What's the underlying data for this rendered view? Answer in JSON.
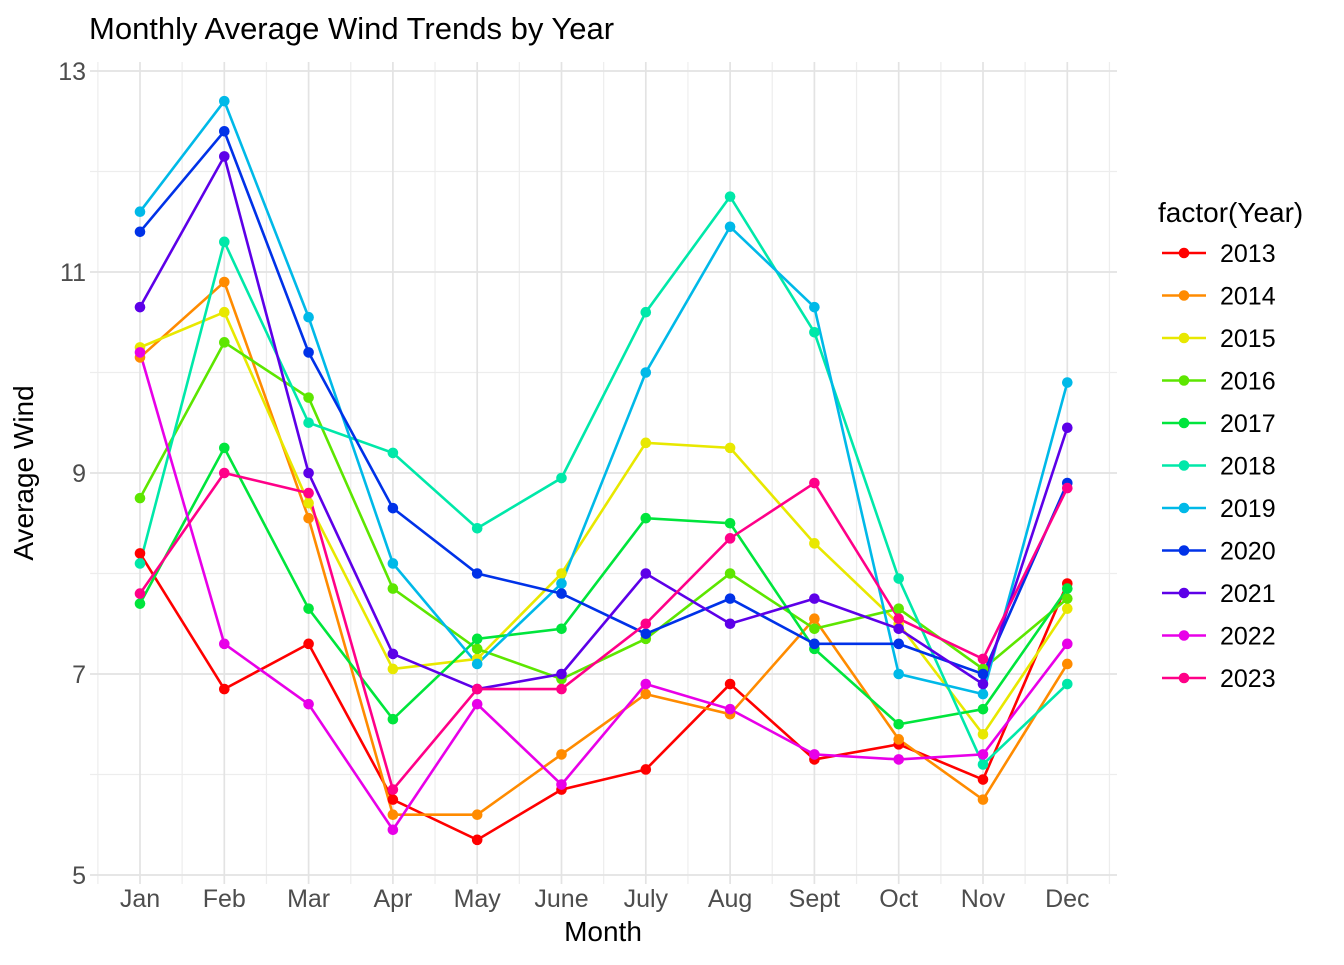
{
  "chart_data": {
    "type": "line",
    "title": "Monthly Average Wind Trends by Year",
    "xlabel": "Month",
    "ylabel": "Average Wind",
    "legend_title": "factor(Year)",
    "legend_position": "right",
    "grid": true,
    "ylim": [
      5,
      13
    ],
    "y_ticks": [
      5,
      7,
      9,
      11,
      13
    ],
    "y_minor_ticks": [
      6,
      8,
      10,
      12
    ],
    "categories": [
      "Jan",
      "Feb",
      "Mar",
      "Apr",
      "May",
      "June",
      "July",
      "Aug",
      "Sept",
      "Oct",
      "Nov",
      "Dec"
    ],
    "series": [
      {
        "name": "2013",
        "color": "#FF0000",
        "values": [
          8.2,
          6.85,
          7.3,
          5.75,
          5.35,
          5.85,
          6.05,
          6.9,
          6.15,
          6.3,
          5.95,
          7.9
        ]
      },
      {
        "name": "2014",
        "color": "#FF8B00",
        "values": [
          10.15,
          10.9,
          8.55,
          5.6,
          5.6,
          6.2,
          6.8,
          6.6,
          7.55,
          6.35,
          5.75,
          7.1
        ]
      },
      {
        "name": "2015",
        "color": "#E8E800",
        "values": [
          10.25,
          10.6,
          8.7,
          7.05,
          7.15,
          8.0,
          9.3,
          9.25,
          8.3,
          7.5,
          6.4,
          7.65
        ]
      },
      {
        "name": "2016",
        "color": "#5DE600",
        "values": [
          8.75,
          10.3,
          9.75,
          7.85,
          7.25,
          6.95,
          7.35,
          8.0,
          7.45,
          7.65,
          7.05,
          7.75
        ]
      },
      {
        "name": "2017",
        "color": "#00E53C",
        "values": [
          7.7,
          9.25,
          7.65,
          6.55,
          7.35,
          7.45,
          8.55,
          8.5,
          7.25,
          6.5,
          6.65,
          7.85
        ]
      },
      {
        "name": "2018",
        "color": "#00E8A9",
        "values": [
          8.1,
          11.3,
          9.5,
          9.2,
          8.45,
          8.95,
          10.6,
          11.75,
          10.4,
          7.95,
          6.1,
          6.9
        ]
      },
      {
        "name": "2019",
        "color": "#00B9E8",
        "values": [
          11.6,
          12.7,
          10.55,
          8.1,
          7.1,
          7.9,
          10.0,
          11.45,
          10.65,
          7.0,
          6.8,
          9.9
        ]
      },
      {
        "name": "2020",
        "color": "#0032E8",
        "values": [
          11.4,
          12.4,
          10.2,
          8.65,
          8.0,
          7.8,
          7.4,
          7.75,
          7.3,
          7.3,
          7.0,
          8.9
        ]
      },
      {
        "name": "2021",
        "color": "#5D00E8",
        "values": [
          10.65,
          12.15,
          9.0,
          7.2,
          6.85,
          7.0,
          8.0,
          7.5,
          7.75,
          7.45,
          6.9,
          9.45
        ]
      },
      {
        "name": "2022",
        "color": "#E800E8",
        "values": [
          10.2,
          7.3,
          6.7,
          5.45,
          6.7,
          5.9,
          6.9,
          6.65,
          6.2,
          6.15,
          6.2,
          7.3
        ]
      },
      {
        "name": "2023",
        "color": "#FF0088",
        "values": [
          7.8,
          9.0,
          8.8,
          5.85,
          6.85,
          6.85,
          7.5,
          8.35,
          8.9,
          7.55,
          7.15,
          8.85
        ]
      }
    ]
  }
}
